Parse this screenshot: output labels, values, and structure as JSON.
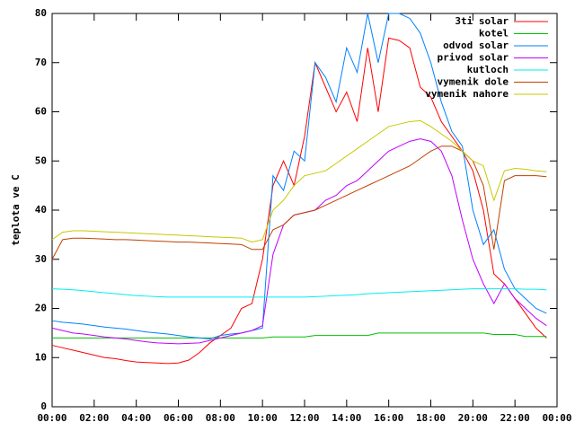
{
  "chart_data": {
    "type": "line",
    "ylabel": "teplota ve C",
    "x": [
      0,
      0.5,
      1,
      1.5,
      2,
      2.5,
      3,
      3.5,
      4,
      4.5,
      5,
      5.5,
      6,
      6.5,
      7,
      7.5,
      8,
      8.5,
      9,
      9.5,
      10,
      10.5,
      11,
      11.5,
      12,
      12.5,
      13,
      13.5,
      14,
      14.5,
      15,
      15.5,
      16,
      16.5,
      17,
      17.5,
      18,
      18.5,
      19,
      19.5,
      20,
      20.5,
      21,
      21.5,
      22,
      22.5,
      23,
      23.5
    ],
    "xlim": [
      0,
      24
    ],
    "xticks": [
      {
        "value": 0,
        "label": "00:00"
      },
      {
        "value": 2,
        "label": "02:00"
      },
      {
        "value": 4,
        "label": "04:00"
      },
      {
        "value": 6,
        "label": "06:00"
      },
      {
        "value": 8,
        "label": "08:00"
      },
      {
        "value": 10,
        "label": "10:00"
      },
      {
        "value": 12,
        "label": "12:00"
      },
      {
        "value": 14,
        "label": "14:00"
      },
      {
        "value": 16,
        "label": "16:00"
      },
      {
        "value": 18,
        "label": "18:00"
      },
      {
        "value": 20,
        "label": "20:00"
      },
      {
        "value": 22,
        "label": "22:00"
      },
      {
        "value": 24,
        "label": "00:00"
      }
    ],
    "ylim": [
      0,
      80
    ],
    "yticks": [
      0,
      10,
      20,
      30,
      40,
      50,
      60,
      70,
      80
    ],
    "legend": "top-right",
    "series": [
      {
        "name": "3ti solar",
        "color": "#ff0000",
        "values": [
          12.5,
          12,
          11.5,
          11,
          10.5,
          10,
          9.8,
          9.4,
          9.1,
          9,
          8.9,
          8.8,
          8.9,
          9.5,
          11,
          13,
          14.5,
          16,
          20,
          21,
          30,
          45,
          50,
          45,
          55,
          70,
          65,
          60,
          64,
          58,
          73,
          60,
          75,
          74.5,
          73,
          65,
          63,
          58,
          55,
          52,
          48,
          40,
          27,
          25,
          22,
          19,
          16,
          14
        ]
      },
      {
        "name": "kotel",
        "color": "#00c000",
        "values": [
          14,
          14,
          14,
          14,
          14,
          14,
          14,
          14,
          14,
          14,
          14,
          14,
          14,
          14,
          14,
          14,
          14,
          14,
          14,
          14,
          14,
          14.2,
          14.2,
          14.2,
          14.2,
          14.5,
          14.5,
          14.5,
          14.5,
          14.5,
          14.5,
          15,
          15,
          15,
          15,
          15,
          15,
          15,
          15,
          15,
          15,
          15,
          14.7,
          14.7,
          14.7,
          14.3,
          14.3,
          14.3
        ]
      },
      {
        "name": "odvod solar",
        "color": "#0080ff",
        "values": [
          17.5,
          17.2,
          17,
          16.8,
          16.5,
          16.2,
          16,
          15.8,
          15.5,
          15.2,
          15,
          14.8,
          14.5,
          14.2,
          14,
          13.8,
          14.5,
          14.8,
          15,
          15.5,
          16,
          47,
          44,
          52,
          50,
          70,
          67,
          62,
          73,
          68,
          80,
          70,
          80,
          80,
          79,
          76,
          70,
          62,
          56,
          53,
          40,
          33,
          36,
          28,
          24,
          22,
          20,
          19
        ]
      },
      {
        "name": "privod solar",
        "color": "#c000ff",
        "values": [
          16,
          15.5,
          15,
          14.8,
          14.5,
          14.2,
          14,
          13.8,
          13.5,
          13.2,
          13,
          12.9,
          12.8,
          12.9,
          13,
          13.5,
          14,
          14.5,
          15,
          15.5,
          16.5,
          31,
          37,
          39,
          39.5,
          40,
          42,
          43,
          45,
          46,
          48,
          50,
          52,
          53,
          54,
          54.5,
          54,
          52,
          47,
          38,
          30,
          25,
          21,
          25,
          22,
          20,
          18,
          16.5
        ]
      },
      {
        "name": "kutloch",
        "color": "#00eeee",
        "values": [
          24,
          23.9,
          23.8,
          23.6,
          23.4,
          23.2,
          23,
          22.8,
          22.6,
          22.5,
          22.4,
          22.3,
          22.3,
          22.3,
          22.3,
          22.3,
          22.3,
          22.3,
          22.3,
          22.3,
          22.3,
          22.3,
          22.3,
          22.3,
          22.3,
          22.4,
          22.5,
          22.6,
          22.7,
          22.8,
          23,
          23.1,
          23.2,
          23.3,
          23.4,
          23.5,
          23.6,
          23.7,
          23.8,
          23.9,
          24,
          24,
          24,
          24,
          24,
          23.9,
          23.9,
          23.8
        ]
      },
      {
        "name": "vymenik dole",
        "color": "#c04000",
        "values": [
          30,
          34,
          34.3,
          34.3,
          34.2,
          34.1,
          34,
          34,
          33.9,
          33.8,
          33.7,
          33.6,
          33.5,
          33.5,
          33.4,
          33.3,
          33.2,
          33.1,
          33,
          32,
          32,
          36,
          37,
          39,
          39.5,
          40,
          41,
          42,
          43,
          44,
          45,
          46,
          47,
          48,
          49,
          50.5,
          52,
          53,
          53,
          52,
          50,
          45,
          32,
          46,
          47,
          47,
          47,
          46.8
        ]
      },
      {
        "name": "vymenik nahore",
        "color": "#c8c800",
        "values": [
          34,
          35.5,
          35.8,
          35.8,
          35.7,
          35.6,
          35.5,
          35.4,
          35.3,
          35.2,
          35.1,
          35,
          34.9,
          34.8,
          34.7,
          34.6,
          34.5,
          34.4,
          34.3,
          33.5,
          34,
          40,
          42,
          45,
          47,
          47.5,
          48,
          49.5,
          51,
          52.5,
          54,
          55.5,
          57,
          57.5,
          58,
          58.2,
          57,
          55.5,
          54,
          52,
          50,
          49,
          42,
          48,
          48.5,
          48.3,
          48,
          47.8
        ]
      }
    ]
  }
}
